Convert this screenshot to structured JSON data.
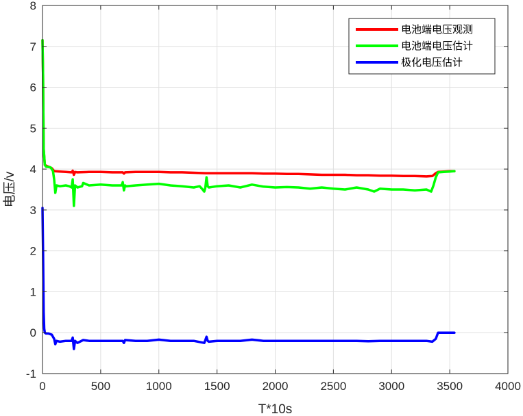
{
  "chart_data": {
    "type": "line",
    "title": "",
    "xlabel": "T*10s",
    "ylabel": "电压/v",
    "xlim": [
      0,
      4000
    ],
    "ylim": [
      -1,
      8
    ],
    "xticks": [
      0,
      500,
      1000,
      1500,
      2000,
      2500,
      3000,
      3500,
      4000
    ],
    "yticks": [
      -1,
      0,
      1,
      2,
      3,
      4,
      5,
      6,
      7,
      8
    ],
    "grid": true,
    "legend_position": "top-right",
    "series": [
      {
        "name": "电池端电压观测",
        "color": "#ff0000",
        "x": [
          0,
          5,
          10,
          20,
          40,
          60,
          80,
          100,
          150,
          200,
          250,
          260,
          270,
          280,
          300,
          400,
          500,
          600,
          690,
          700,
          710,
          800,
          900,
          1000,
          1100,
          1200,
          1300,
          1400,
          1500,
          1600,
          1700,
          1800,
          1900,
          2000,
          2100,
          2200,
          2300,
          2400,
          2500,
          2600,
          2700,
          2800,
          2900,
          3000,
          3100,
          3200,
          3300,
          3350,
          3380,
          3400,
          3450,
          3500,
          3540
        ],
        "y": [
          7.15,
          6.3,
          4.5,
          4.1,
          4.07,
          4.05,
          4.02,
          3.95,
          3.94,
          3.93,
          3.92,
          3.96,
          3.86,
          3.93,
          3.92,
          3.93,
          3.93,
          3.92,
          3.92,
          3.89,
          3.92,
          3.93,
          3.93,
          3.93,
          3.92,
          3.92,
          3.91,
          3.9,
          3.9,
          3.9,
          3.9,
          3.9,
          3.89,
          3.89,
          3.88,
          3.88,
          3.87,
          3.86,
          3.86,
          3.86,
          3.85,
          3.85,
          3.84,
          3.84,
          3.83,
          3.83,
          3.82,
          3.83,
          3.9,
          3.93,
          3.94,
          3.95,
          3.95
        ]
      },
      {
        "name": "电池端电压估计",
        "color": "#00ff00",
        "x": [
          0,
          5,
          10,
          20,
          30,
          50,
          70,
          90,
          100,
          110,
          120,
          150,
          200,
          230,
          250,
          260,
          270,
          280,
          290,
          300,
          340,
          350,
          400,
          500,
          600,
          680,
          690,
          700,
          710,
          720,
          800,
          900,
          1000,
          1100,
          1200,
          1300,
          1350,
          1370,
          1390,
          1400,
          1410,
          1420,
          1430,
          1500,
          1600,
          1700,
          1800,
          1900,
          2000,
          2100,
          2200,
          2300,
          2400,
          2500,
          2600,
          2700,
          2800,
          2850,
          2900,
          3000,
          3100,
          3200,
          3300,
          3340,
          3360,
          3380,
          3400,
          3450,
          3500,
          3540
        ],
        "y": [
          7.15,
          6.3,
          4.5,
          4.1,
          4.06,
          4.05,
          4.04,
          3.95,
          3.75,
          3.42,
          3.6,
          3.58,
          3.6,
          3.58,
          3.55,
          3.75,
          3.1,
          3.6,
          3.58,
          3.55,
          3.58,
          3.66,
          3.6,
          3.62,
          3.6,
          3.6,
          3.68,
          3.48,
          3.6,
          3.58,
          3.6,
          3.62,
          3.64,
          3.6,
          3.58,
          3.55,
          3.58,
          3.52,
          3.45,
          3.55,
          3.8,
          3.58,
          3.55,
          3.58,
          3.6,
          3.55,
          3.62,
          3.57,
          3.55,
          3.56,
          3.55,
          3.52,
          3.55,
          3.52,
          3.5,
          3.55,
          3.5,
          3.45,
          3.52,
          3.5,
          3.5,
          3.48,
          3.5,
          3.45,
          3.6,
          3.8,
          3.92,
          3.93,
          3.94,
          3.95
        ]
      },
      {
        "name": "极化电压估计",
        "color": "#0000ff",
        "x": [
          0,
          5,
          10,
          15,
          20,
          30,
          50,
          80,
          100,
          110,
          120,
          150,
          200,
          250,
          260,
          270,
          280,
          300,
          350,
          400,
          500,
          600,
          690,
          700,
          710,
          800,
          900,
          1000,
          1100,
          1200,
          1300,
          1390,
          1400,
          1410,
          1420,
          1430,
          1500,
          1600,
          1700,
          1800,
          1900,
          2000,
          2100,
          2200,
          2300,
          2400,
          2500,
          2600,
          2700,
          2800,
          2900,
          3000,
          3100,
          3200,
          3300,
          3350,
          3380,
          3400,
          3450,
          3500,
          3540
        ],
        "y": [
          3.05,
          2.0,
          0.5,
          0.1,
          0.0,
          -0.02,
          -0.02,
          -0.05,
          -0.15,
          -0.28,
          -0.2,
          -0.22,
          -0.2,
          -0.2,
          -0.12,
          -0.4,
          -0.2,
          -0.25,
          -0.18,
          -0.2,
          -0.2,
          -0.2,
          -0.2,
          -0.25,
          -0.18,
          -0.2,
          -0.2,
          -0.17,
          -0.2,
          -0.2,
          -0.2,
          -0.25,
          -0.18,
          -0.1,
          -0.2,
          -0.22,
          -0.2,
          -0.2,
          -0.2,
          -0.17,
          -0.2,
          -0.2,
          -0.2,
          -0.2,
          -0.2,
          -0.2,
          -0.2,
          -0.2,
          -0.2,
          -0.21,
          -0.2,
          -0.2,
          -0.2,
          -0.2,
          -0.2,
          -0.22,
          -0.15,
          0.0,
          0.0,
          0.0,
          0.0
        ]
      }
    ]
  },
  "colors": {
    "grid": "#dfdfdf",
    "axis": "#262626"
  }
}
